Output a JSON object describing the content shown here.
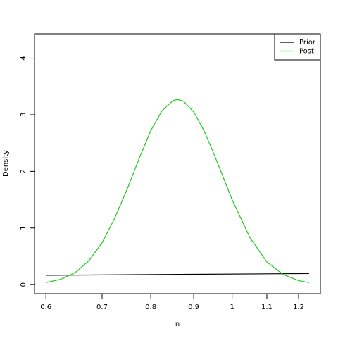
{
  "chart_data": {
    "type": "line",
    "xlabel": "n",
    "ylabel": "Density",
    "xscale": "log",
    "xlim": [
      0.5815,
      1.274
    ],
    "xticks": [
      0.6,
      0.7,
      0.8,
      0.9,
      1.0,
      1.1,
      1.2
    ],
    "ylim": [
      -0.16,
      4.43
    ],
    "yticks": [
      0,
      1,
      2,
      3,
      4
    ],
    "legend": "top-right",
    "series": [
      {
        "name": "Prior",
        "color": "#000000",
        "x": [
          0.6,
          1.235
        ],
        "values": [
          0.165,
          0.195
        ]
      },
      {
        "name": "Post.",
        "color": "#1ec81e",
        "x": [
          0.6,
          0.625,
          0.65,
          0.675,
          0.7,
          0.725,
          0.75,
          0.775,
          0.8,
          0.825,
          0.85,
          0.86,
          0.875,
          0.9,
          0.925,
          0.95,
          0.975,
          1.0,
          1.05,
          1.1,
          1.15,
          1.2,
          1.235
        ],
        "values": [
          0.036,
          0.094,
          0.21,
          0.42,
          0.74,
          1.18,
          1.69,
          2.23,
          2.72,
          3.07,
          3.25,
          3.27,
          3.24,
          3.05,
          2.73,
          2.33,
          1.91,
          1.5,
          0.83,
          0.4,
          0.18,
          0.071,
          0.035
        ]
      }
    ]
  }
}
